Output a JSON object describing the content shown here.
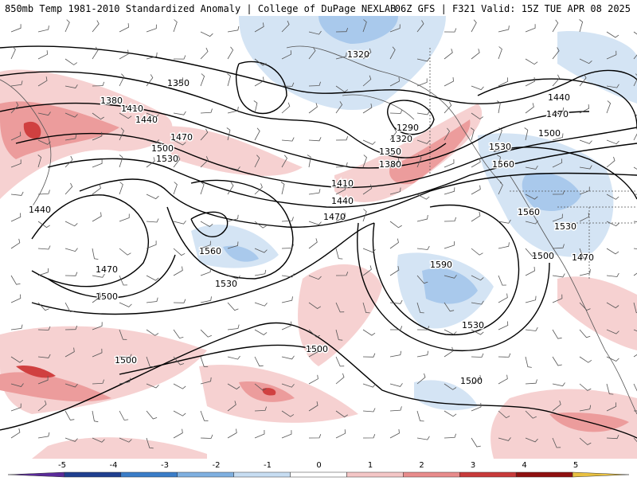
{
  "title": {
    "left": "850mb Temp 1981-2010 Standardized Anomaly | College of DuPage NEXLAB",
    "right": "06Z GFS | F321 Valid: 15Z TUE APR 08 2025"
  },
  "colorbar": {
    "ticks": [
      "-5",
      "-4",
      "-3",
      "-2",
      "-1",
      "0",
      "1",
      "2",
      "3",
      "4",
      "5"
    ],
    "colors": [
      "#5a2a9a",
      "#1f3f8f",
      "#3a7dc8",
      "#7fb0e0",
      "#c7ddf2",
      "#ffffff",
      "#f4c6c6",
      "#e88b8b",
      "#c83a3a",
      "#8f1010",
      "#e8c040"
    ]
  },
  "contour_labels": [
    "1320",
    "1350",
    "1380",
    "1410",
    "1440",
    "1470",
    "1500",
    "1530",
    "1560",
    "1590",
    "1290"
  ],
  "colors": {
    "warm_light": "#f6cfcf",
    "warm_mid": "#ec9c9c",
    "warm_strong": "#d04040",
    "cool_light": "#d4e4f4",
    "cool_mid": "#a9c9ec",
    "contour": "#000000",
    "border": "#555555"
  }
}
